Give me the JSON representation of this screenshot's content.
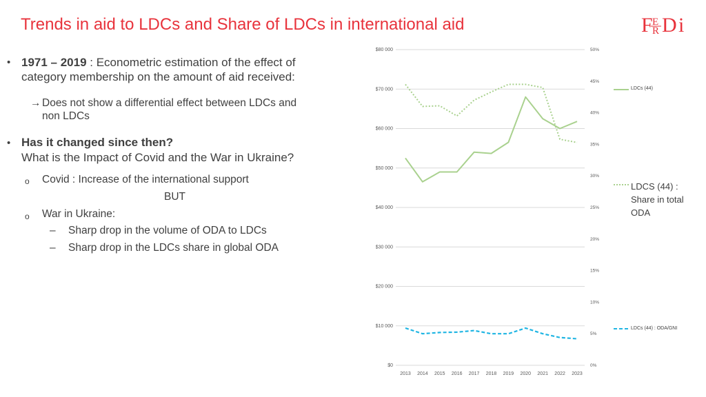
{
  "slide": {
    "title": "Trends in aid to LDCs and Share of LDCs in international aid",
    "logo_text": "FERDI",
    "brand_color": "#e8333c"
  },
  "content": {
    "b1_bold": "1971 – 2019",
    "b1_rest": " : Econometric estimation of the effect of",
    "b1_line2": "category membership on the amount of aid received:",
    "arrow_line1": "Does not show a differential effect between LDCs and",
    "arrow_line2": "non LDCs",
    "b2_bold": "Has it changed since then?",
    "b2_line2": "What is the Impact of Covid and the War in Ukraine?",
    "sub1": "Covid : Increase of the international support",
    "but": "BUT",
    "sub2": "War in Ukraine:",
    "dash1": "Sharp drop in the volume of ODA to LDCs",
    "dash2": "Sharp drop in the LDCs share in global ODA"
  },
  "chart_data": {
    "type": "line",
    "x": [
      "2013",
      "2014",
      "2015",
      "2016",
      "2017",
      "2018",
      "2019",
      "2020",
      "2021",
      "2022",
      "2023"
    ],
    "y_left_ticks": [
      "$0",
      "$10 000",
      "$20 000",
      "$30 000",
      "$40 000",
      "$50 000",
      "$60 000",
      "$70 000",
      "$80 000"
    ],
    "y_right_ticks": [
      "0%",
      "5%",
      "10%",
      "15%",
      "20%",
      "25%",
      "30%",
      "35%",
      "40%",
      "45%",
      "50%"
    ],
    "ylim_left": [
      0,
      80000
    ],
    "ylim_right": [
      0,
      50
    ],
    "grid": true,
    "series": [
      {
        "name": "LDCs (44)",
        "axis": "left",
        "style": "solid",
        "color": "#a9d18e",
        "values": [
          52500,
          46500,
          49000,
          49000,
          54000,
          53700,
          56500,
          68000,
          62500,
          60000,
          61800
        ]
      },
      {
        "name": "LDCS (44) : Share in total ODA",
        "axis": "right",
        "style": "dotted",
        "color": "#a9d18e",
        "values": [
          44.5,
          41.0,
          41.1,
          39.5,
          42.0,
          43.3,
          44.5,
          44.5,
          44.0,
          35.8,
          35.3
        ]
      },
      {
        "name": "LDCs (44) : ODA/GNI",
        "axis": "right",
        "style": "dashed",
        "color": "#1fb5e3",
        "values": [
          5.9,
          5.0,
          5.2,
          5.25,
          5.5,
          5.0,
          5.0,
          5.9,
          5.0,
          4.4,
          4.2
        ]
      }
    ],
    "legend": [
      {
        "label": "LDCs (44)"
      },
      {
        "label_lines": [
          "LDCS (44) :",
          "Share in total",
          "ODA"
        ]
      },
      {
        "label": "LDCs (44) : ODA/GNI"
      }
    ]
  }
}
